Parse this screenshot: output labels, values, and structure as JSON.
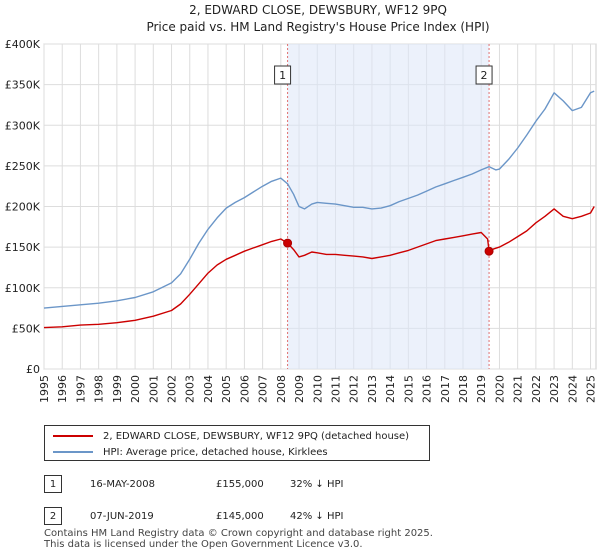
{
  "chart_data": {
    "type": "line",
    "title": "2, EDWARD CLOSE, DEWSBURY, WF12 9PQ",
    "subtitle": "Price paid vs. HM Land Registry's House Price Index (HPI)",
    "xlabel": "",
    "ylabel": "",
    "xlim": [
      1995.0,
      2025.3
    ],
    "ylim": [
      0,
      400000
    ],
    "y_ticks": [
      0,
      50000,
      100000,
      150000,
      200000,
      250000,
      300000,
      350000,
      400000
    ],
    "y_tick_labels": [
      "£0",
      "£50K",
      "£100K",
      "£150K",
      "£200K",
      "£250K",
      "£300K",
      "£350K",
      "£400K"
    ],
    "x_ticks": [
      1995,
      1996,
      1997,
      1998,
      1999,
      2000,
      2001,
      2002,
      2003,
      2004,
      2005,
      2006,
      2007,
      2008,
      2009,
      2010,
      2011,
      2012,
      2013,
      2014,
      2015,
      2016,
      2017,
      2018,
      2019,
      2020,
      2021,
      2022,
      2023,
      2024,
      2025
    ],
    "x_tick_labels": [
      "1995",
      "1996",
      "1997",
      "1998",
      "1999",
      "2000",
      "2001",
      "2002",
      "2003",
      "2004",
      "2005",
      "2006",
      "2007",
      "2008",
      "2009",
      "2010",
      "2011",
      "2012",
      "2013",
      "2014",
      "2015",
      "2016",
      "2017",
      "2018",
      "2019",
      "2020",
      "2021",
      "2022",
      "2023",
      "2024",
      "2025"
    ],
    "grid": true,
    "shaded_region": {
      "from": 2008.37,
      "to": 2019.43
    },
    "series": [
      {
        "name": "2, EDWARD CLOSE, DEWSBURY, WF12 9PQ (detached house)",
        "color": "#cc0000",
        "x": [
          1995.0,
          1996.0,
          1997.0,
          1998.0,
          1999.0,
          2000.0,
          2001.0,
          2002.0,
          2002.5,
          2003.0,
          2003.5,
          2004.0,
          2004.5,
          2005.0,
          2005.5,
          2006.0,
          2006.5,
          2007.0,
          2007.5,
          2008.0,
          2008.37,
          2008.7,
          2009.0,
          2009.3,
          2009.7,
          2010.0,
          2010.5,
          2011.0,
          2011.5,
          2012.0,
          2012.5,
          2013.0,
          2013.5,
          2014.0,
          2014.5,
          2015.0,
          2015.5,
          2016.0,
          2016.5,
          2017.0,
          2017.5,
          2018.0,
          2018.5,
          2019.0,
          2019.35,
          2019.43,
          2019.7,
          2020.0,
          2020.5,
          2021.0,
          2021.5,
          2022.0,
          2022.5,
          2023.0,
          2023.5,
          2024.0,
          2024.5,
          2025.0,
          2025.2
        ],
        "values": [
          51000,
          52000,
          54000,
          55000,
          57000,
          60000,
          65000,
          72000,
          80000,
          92000,
          105000,
          118000,
          128000,
          135000,
          140000,
          145000,
          149000,
          153000,
          157000,
          160000,
          155000,
          147000,
          138000,
          140000,
          144000,
          143000,
          141000,
          141000,
          140000,
          139000,
          138000,
          136000,
          138000,
          140000,
          143000,
          146000,
          150000,
          154000,
          158000,
          160000,
          162000,
          164000,
          166000,
          168000,
          160000,
          145000,
          148000,
          150000,
          156000,
          163000,
          170000,
          180000,
          188000,
          197000,
          188000,
          185000,
          188000,
          192000,
          200000
        ]
      },
      {
        "name": "HPI: Average price, detached house, Kirklees",
        "color": "#6b96c8",
        "x": [
          1995.0,
          1996.0,
          1997.0,
          1998.0,
          1999.0,
          2000.0,
          2001.0,
          2002.0,
          2002.5,
          2003.0,
          2003.5,
          2004.0,
          2004.5,
          2005.0,
          2005.5,
          2006.0,
          2006.5,
          2007.0,
          2007.5,
          2008.0,
          2008.37,
          2008.7,
          2009.0,
          2009.3,
          2009.7,
          2010.0,
          2010.5,
          2011.0,
          2011.5,
          2012.0,
          2012.5,
          2013.0,
          2013.5,
          2014.0,
          2014.5,
          2015.0,
          2015.5,
          2016.0,
          2016.5,
          2017.0,
          2017.5,
          2018.0,
          2018.5,
          2019.0,
          2019.43,
          2019.8,
          2020.0,
          2020.5,
          2021.0,
          2021.5,
          2022.0,
          2022.5,
          2023.0,
          2023.5,
          2024.0,
          2024.5,
          2025.0,
          2025.2
        ],
        "values": [
          75000,
          77000,
          79000,
          81000,
          84000,
          88000,
          95000,
          106000,
          117000,
          135000,
          155000,
          172000,
          186000,
          198000,
          205000,
          211000,
          218000,
          225000,
          231000,
          235000,
          228000,
          215000,
          200000,
          197000,
          203000,
          205000,
          204000,
          203000,
          201000,
          199000,
          199000,
          197000,
          198000,
          201000,
          206000,
          210000,
          214000,
          219000,
          224000,
          228000,
          232000,
          236000,
          240000,
          245000,
          249000,
          245000,
          246000,
          258000,
          272000,
          288000,
          305000,
          320000,
          340000,
          330000,
          318000,
          322000,
          340000,
          342000
        ]
      }
    ],
    "markers": [
      {
        "label": "1",
        "x": 2008.37,
        "value": 155000
      },
      {
        "label": "2",
        "x": 2019.43,
        "value": 145000
      }
    ]
  },
  "legend": {
    "red_label": "2, EDWARD CLOSE, DEWSBURY, WF12 9PQ (detached house)",
    "blue_label": "HPI: Average price, detached house, Kirklees",
    "red_color": "#cc0000",
    "blue_color": "#6b96c8"
  },
  "transactions": [
    {
      "num": "1",
      "date": "16-MAY-2008",
      "price": "£155,000",
      "hpi": "32% ↓ HPI"
    },
    {
      "num": "2",
      "date": "07-JUN-2019",
      "price": "£145,000",
      "hpi": "42% ↓ HPI"
    }
  ],
  "footer": {
    "line1": "Contains HM Land Registry data © Crown copyright and database right 2025.",
    "line2": "This data is licensed under the Open Government Licence v3.0."
  }
}
